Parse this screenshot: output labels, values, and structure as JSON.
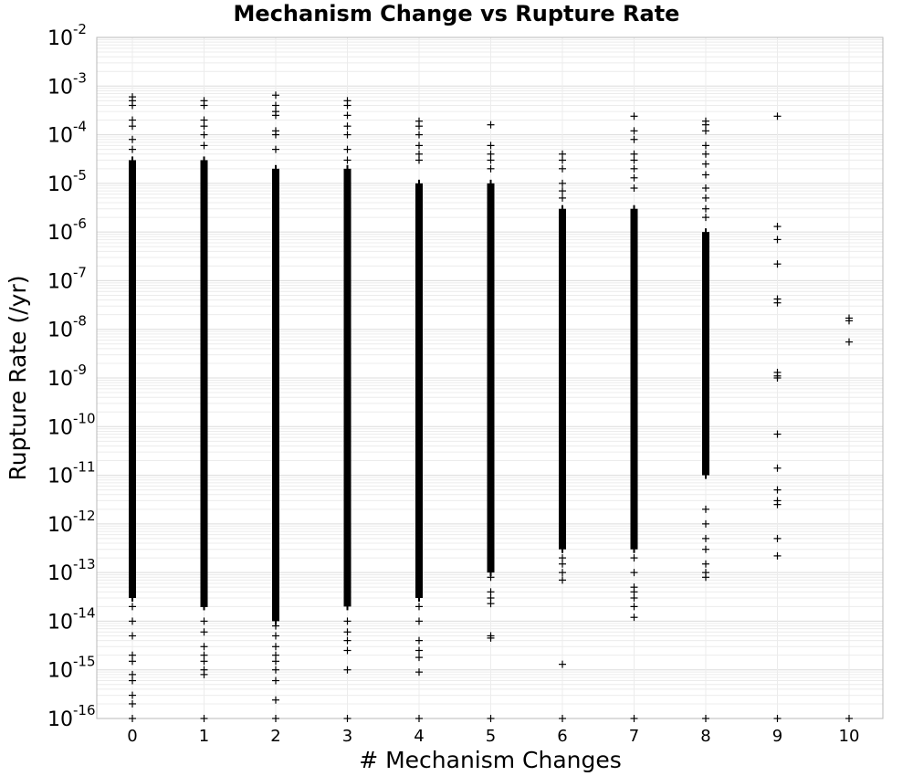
{
  "chart_data": {
    "type": "scatter",
    "title": "Mechanism Change vs Rupture Rate",
    "xlabel": "# Mechanism Changes",
    "ylabel": "Rupture Rate (/yr)",
    "xlim": [
      -0.5,
      10.5
    ],
    "ylim": [
      1e-16,
      0.01
    ],
    "yscale": "log",
    "marker": "+",
    "marker_color": "#000000",
    "grid": true,
    "xticks": [
      "0",
      "1",
      "2",
      "3",
      "4",
      "5",
      "6",
      "7",
      "8",
      "9",
      "10"
    ],
    "yticks": [
      {
        "value": 1e-16,
        "base": "10",
        "exp": "-16"
      },
      {
        "value": 1e-15,
        "base": "10",
        "exp": "-15"
      },
      {
        "value": 1e-14,
        "base": "10",
        "exp": "-14"
      },
      {
        "value": 1e-13,
        "base": "10",
        "exp": "-13"
      },
      {
        "value": 1e-12,
        "base": "10",
        "exp": "-12"
      },
      {
        "value": 1e-11,
        "base": "10",
        "exp": "-11"
      },
      {
        "value": 1e-10,
        "base": "10",
        "exp": "-10"
      },
      {
        "value": 1e-09,
        "base": "10",
        "exp": "-9"
      },
      {
        "value": 1e-08,
        "base": "10",
        "exp": "-8"
      },
      {
        "value": 1e-07,
        "base": "10",
        "exp": "-7"
      },
      {
        "value": 1e-06,
        "base": "10",
        "exp": "-6"
      },
      {
        "value": 1e-05,
        "base": "10",
        "exp": "-5"
      },
      {
        "value": 0.0001,
        "base": "10",
        "exp": "-4"
      },
      {
        "value": 0.001,
        "base": "10",
        "exp": "-3"
      },
      {
        "value": 0.01,
        "base": "10",
        "exp": "-2"
      }
    ],
    "groups": [
      {
        "x": 0,
        "dense_range": [
          3e-14,
          3e-05
        ],
        "points": [
          0.0006,
          0.0005,
          0.0004,
          0.0002,
          0.00015,
          8e-05,
          5e-05,
          2e-14,
          1e-14,
          5e-15,
          2e-15,
          1.5e-15,
          8e-16,
          6e-16,
          3e-16,
          2e-16,
          1e-16
        ]
      },
      {
        "x": 1,
        "dense_range": [
          2e-14,
          3e-05
        ],
        "points": [
          0.0005,
          0.0004,
          0.0002,
          0.00015,
          0.0001,
          6e-05,
          2e-14,
          1e-14,
          6e-15,
          3e-15,
          2e-15,
          1.5e-15,
          1e-15,
          8e-16,
          1e-16
        ]
      },
      {
        "x": 2,
        "dense_range": [
          1e-14,
          2e-05
        ],
        "points": [
          0.00065,
          0.0004,
          0.0003,
          0.00025,
          0.00012,
          0.0001,
          5e-05,
          8e-15,
          5e-15,
          3e-15,
          2e-15,
          1.5e-15,
          1e-15,
          6e-16,
          2.4e-16,
          1e-16
        ]
      },
      {
        "x": 3,
        "dense_range": [
          2e-14,
          2e-05
        ],
        "points": [
          0.0005,
          0.0004,
          0.00025,
          0.00015,
          0.0001,
          5e-05,
          3e-05,
          1e-14,
          6e-15,
          4e-15,
          2.5e-15,
          1e-15,
          1e-16
        ]
      },
      {
        "x": 4,
        "dense_range": [
          3e-14,
          1e-05
        ],
        "points": [
          0.00019,
          0.00015,
          0.0001,
          6e-05,
          4e-05,
          3e-05,
          2e-14,
          1e-14,
          4e-15,
          2.5e-15,
          1.8e-15,
          9e-16,
          1e-16
        ]
      },
      {
        "x": 5,
        "dense_range": [
          1e-13,
          1e-05
        ],
        "points": [
          0.00016,
          6e-05,
          4e-05,
          3e-05,
          2e-05,
          8e-14,
          4e-14,
          3e-14,
          2.3e-14,
          5e-15,
          4.5e-15,
          1e-16
        ]
      },
      {
        "x": 6,
        "dense_range": [
          3e-13,
          3e-06
        ],
        "points": [
          4e-05,
          3e-05,
          2e-05,
          1e-05,
          7e-06,
          5e-06,
          2e-13,
          1.5e-13,
          1e-13,
          7e-14,
          1.3e-15,
          1e-16
        ]
      },
      {
        "x": 7,
        "dense_range": [
          3e-13,
          3e-06
        ],
        "points": [
          0.00024,
          0.00012,
          8e-05,
          4e-05,
          3e-05,
          2e-05,
          1.3e-05,
          8e-06,
          2e-13,
          1e-13,
          5e-14,
          4e-14,
          3e-14,
          2e-14,
          1.2e-14,
          1e-16
        ]
      },
      {
        "x": 8,
        "dense_range": [
          1e-11,
          1e-06
        ],
        "points": [
          0.00019,
          0.00016,
          0.00012,
          6e-05,
          4e-05,
          2.5e-05,
          1.5e-05,
          8e-06,
          5e-06,
          3e-06,
          2e-06,
          2e-12,
          1e-12,
          5e-13,
          3e-13,
          1.5e-13,
          1e-13,
          8e-14,
          1e-16
        ]
      },
      {
        "x": 9,
        "dense_range": null,
        "points": [
          0.00024,
          1.3e-06,
          7e-07,
          2.2e-07,
          4.2e-08,
          3.5e-08,
          1.3e-09,
          1.1e-09,
          1e-09,
          7e-11,
          1.4e-11,
          5e-12,
          3e-12,
          2.5e-12,
          5e-13,
          2.2e-13,
          1e-16
        ]
      },
      {
        "x": 10,
        "dense_range": null,
        "points": [
          1.7e-08,
          1.5e-08,
          5.5e-09,
          1e-16
        ]
      }
    ]
  }
}
